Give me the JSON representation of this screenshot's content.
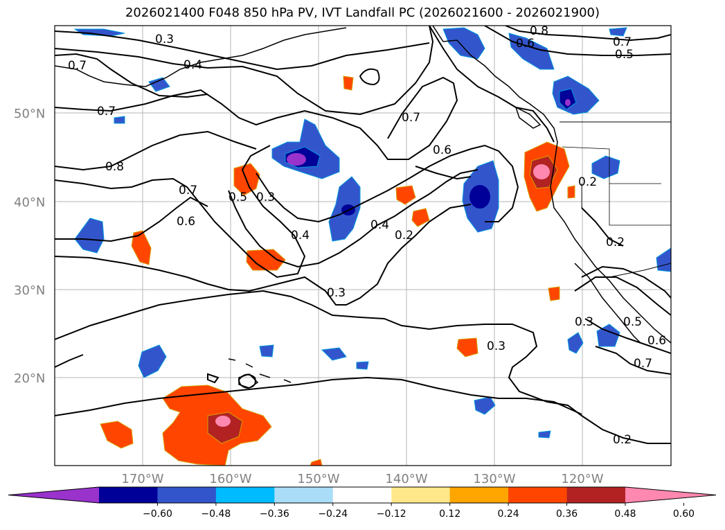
{
  "title": "2026021400 F048 850 hPa PV, IVT Landfall PC (2026021600 - 2026021900)",
  "lat_labels": [
    "50°N",
    "40°N",
    "30°N",
    "20°N"
  ],
  "lon_labels": [
    "170°W",
    "160°W",
    "150°W",
    "140°W",
    "130°W",
    "120°W"
  ],
  "contour_labels": [
    "0.3",
    "0.4",
    "0.7",
    "0.7",
    "0.8",
    "0.7",
    "0.6",
    "0.5",
    "0.3",
    "0.4",
    "0.7",
    "0.6",
    "0.8",
    "0.7",
    "0.5",
    "0.4",
    "0.2",
    "0.6",
    "0.3",
    "0.2",
    "0.3",
    "0.3",
    "0.2",
    "0.5",
    "0.6",
    "0.7",
    "0.2"
  ],
  "colorbar": {
    "colors": [
      "#9933cc",
      "#000099",
      "#3355cc",
      "#00bbff",
      "#aaddf8",
      "#ffffff",
      "#ffe88a",
      "#ffa500",
      "#ff4500",
      "#b22222",
      "#ff88b0"
    ],
    "tick_labels": [
      "−0.60",
      "−0.48",
      "−0.36",
      "−0.24",
      "−0.12",
      "0.12",
      "0.24",
      "0.36",
      "0.48",
      "0.60"
    ]
  }
}
